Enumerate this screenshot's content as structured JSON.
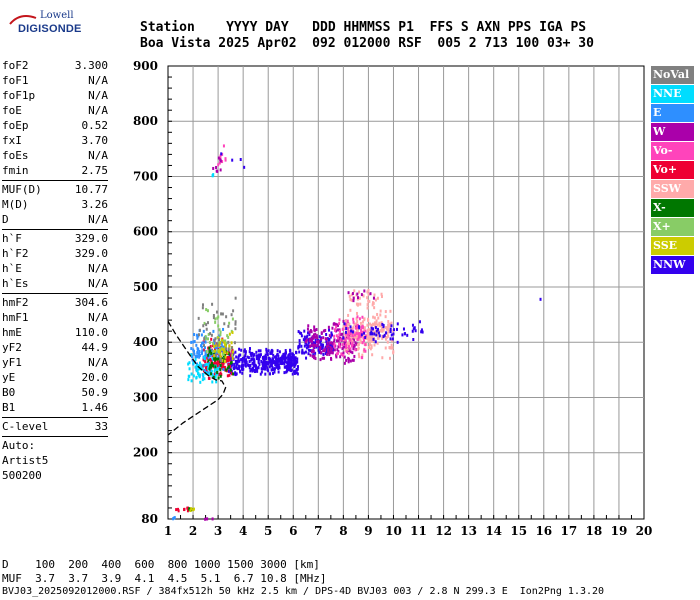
{
  "logo": {
    "line1": "Lowell",
    "line2": "DIGISONDE"
  },
  "header": {
    "line1": "Station    YYYY DAY   DDD HHMMSS P1  FFS S AXN PPS IGA PS",
    "line2": "Boa Vista 2025 Apr02  092 012000 RSF  005 2 713 100 03+ 30"
  },
  "params": [
    [
      {
        "label": "foF2",
        "value": "3.300"
      },
      {
        "label": "foF1",
        "value": "N/A"
      },
      {
        "label": "foF1p",
        "value": "N/A"
      },
      {
        "label": "foE",
        "value": "N/A"
      },
      {
        "label": "foEp",
        "value": "0.52"
      },
      {
        "label": "fxI",
        "value": "3.70"
      },
      {
        "label": "foEs",
        "value": "N/A"
      },
      {
        "label": "fmin",
        "value": "2.75"
      }
    ],
    [
      {
        "label": "MUF(D)",
        "value": "10.77"
      },
      {
        "label": "M(D)",
        "value": "3.26"
      },
      {
        "label": "D",
        "value": "N/A"
      }
    ],
    [
      {
        "label": "h`F",
        "value": "329.0"
      },
      {
        "label": "h`F2",
        "value": "329.0"
      },
      {
        "label": "h`E",
        "value": "N/A"
      },
      {
        "label": "h`Es",
        "value": "N/A"
      }
    ],
    [
      {
        "label": "hmF2",
        "value": "304.6"
      },
      {
        "label": "hmF1",
        "value": "N/A"
      },
      {
        "label": "hmE",
        "value": "110.0"
      },
      {
        "label": "yF2",
        "value": "44.9"
      },
      {
        "label": "yF1",
        "value": "N/A"
      },
      {
        "label": "yE",
        "value": "20.0"
      },
      {
        "label": "B0",
        "value": "50.9"
      },
      {
        "label": "B1",
        "value": "1.46"
      }
    ],
    [
      {
        "label": "C-level",
        "value": "33"
      }
    ]
  ],
  "meta": {
    "auto": "Auto:",
    "artist": "Artist5",
    "version": "500200"
  },
  "legend": [
    {
      "label": "NoVal",
      "color": "#808080"
    },
    {
      "label": "NNE",
      "color": "#00ddff"
    },
    {
      "label": "E",
      "color": "#2e8fff"
    },
    {
      "label": "W",
      "color": "#aa00aa"
    },
    {
      "label": "Vo-",
      "color": "#ff44bb"
    },
    {
      "label": "Vo+",
      "color": "#ee0033"
    },
    {
      "label": "SSW",
      "color": "#ffaaaa"
    },
    {
      "label": "X-",
      "color": "#007700"
    },
    {
      "label": "X+",
      "color": "#88cc66"
    },
    {
      "label": "SSE",
      "color": "#cccc00"
    },
    {
      "label": "NNW",
      "color": "#3300ee"
    }
  ],
  "bottom": {
    "d_line": "D    100  200  400  600  800 1000 1500 3000 [km]",
    "muf_line": "MUF  3.7  3.7  3.9  4.1  4.5  5.1  6.7 10.8 [MHz]",
    "footer": "BVJ03_2025092012000.RSF / 384fx512h 50 kHz 2.5 km / DPS-4D BVJ03 003 / 2.8 N 299.3 E  Ion2Png 1.3.20"
  },
  "chart_data": {
    "type": "scatter",
    "xlim": [
      1,
      20
    ],
    "ylim": [
      80,
      900
    ],
    "x_ticks": [
      1,
      2,
      3,
      4,
      5,
      6,
      7,
      8,
      9,
      10,
      11,
      12,
      13,
      14,
      15,
      16,
      17,
      18,
      19,
      20
    ],
    "y_ticks": [
      80,
      200,
      300,
      400,
      500,
      600,
      700,
      800,
      900
    ],
    "grid": true,
    "clusters": [
      {
        "series": "NNW",
        "x": [
          3.4,
          6.2
        ],
        "y": [
          340,
          390
        ],
        "n": 420
      },
      {
        "series": "NNW",
        "x": [
          6.2,
          7.6
        ],
        "y": [
          370,
          425
        ],
        "n": 120
      },
      {
        "series": "W",
        "x": [
          6.5,
          8.6
        ],
        "y": [
          360,
          440
        ],
        "n": 180
      },
      {
        "series": "SSW",
        "x": [
          8.0,
          10.0
        ],
        "y": [
          370,
          460
        ],
        "n": 220
      },
      {
        "series": "Vo+",
        "x": [
          2.4,
          3.6
        ],
        "y": [
          330,
          410
        ],
        "n": 140
      },
      {
        "series": "Vo-",
        "x": [
          7.6,
          8.9
        ],
        "y": [
          370,
          450
        ],
        "n": 90
      },
      {
        "series": "E",
        "x": [
          1.9,
          3.3
        ],
        "y": [
          330,
          430
        ],
        "n": 110
      },
      {
        "series": "NNE",
        "x": [
          1.8,
          3.0
        ],
        "y": [
          320,
          380
        ],
        "n": 70
      },
      {
        "series": "X-",
        "x": [
          2.6,
          3.6
        ],
        "y": [
          330,
          400
        ],
        "n": 45
      },
      {
        "series": "X+",
        "x": [
          2.4,
          3.6
        ],
        "y": [
          340,
          470
        ],
        "n": 40
      },
      {
        "series": "SSE",
        "x": [
          2.8,
          3.6
        ],
        "y": [
          350,
          430
        ],
        "n": 30
      },
      {
        "series": "NoVal",
        "x": [
          2.2,
          3.7
        ],
        "y": [
          360,
          490
        ],
        "n": 40
      },
      {
        "series": "NNW",
        "x": [
          8.0,
          11.2
        ],
        "y": [
          400,
          440
        ],
        "n": 60
      },
      {
        "series": "SSW",
        "x": [
          8.2,
          9.6
        ],
        "y": [
          455,
          500
        ],
        "n": 35
      },
      {
        "series": "W",
        "x": [
          8.2,
          9.4
        ],
        "y": [
          470,
          505
        ],
        "n": 10
      },
      {
        "series": "Vo-",
        "x": [
          3.0,
          3.3
        ],
        "y": [
          700,
          770
        ],
        "n": 10
      },
      {
        "series": "W",
        "x": [
          2.8,
          3.3
        ],
        "y": [
          690,
          750
        ],
        "n": 8
      },
      {
        "series": "NNE",
        "x": [
          2.7,
          2.9
        ],
        "y": [
          695,
          705
        ],
        "n": 3
      },
      {
        "series": "NNW",
        "x": [
          3.0,
          4.4
        ],
        "y": [
          700,
          755
        ],
        "n": 4
      },
      {
        "series": "Vo+",
        "x": [
          1.3,
          1.8
        ],
        "y": [
          95,
          102
        ],
        "n": 8
      },
      {
        "series": "X-",
        "x": [
          1.8,
          2.0
        ],
        "y": [
          95,
          100
        ],
        "n": 6
      },
      {
        "series": "SSE",
        "x": [
          1.9,
          2.1
        ],
        "y": [
          96,
          100
        ],
        "n": 4
      },
      {
        "series": "E",
        "x": [
          1.2,
          1.3
        ],
        "y": [
          80,
          84
        ],
        "n": 3
      },
      {
        "series": "W",
        "x": [
          2.4,
          2.8
        ],
        "y": [
          80,
          84
        ],
        "n": 4
      },
      {
        "series": "NNW",
        "x": [
          15.8,
          15.9
        ],
        "y": [
          478,
          480
        ],
        "n": 1
      }
    ],
    "profile_curve": [
      [
        1.0,
        438
      ],
      [
        1.3,
        415
      ],
      [
        1.6,
        395
      ],
      [
        1.9,
        375
      ],
      [
        2.2,
        356
      ],
      [
        2.6,
        340
      ],
      [
        2.9,
        332
      ],
      [
        3.15,
        330
      ],
      [
        3.3,
        318
      ],
      [
        3.2,
        306
      ],
      [
        3.0,
        296
      ],
      [
        2.4,
        278
      ],
      [
        1.6,
        254
      ],
      [
        1.0,
        232
      ]
    ]
  }
}
